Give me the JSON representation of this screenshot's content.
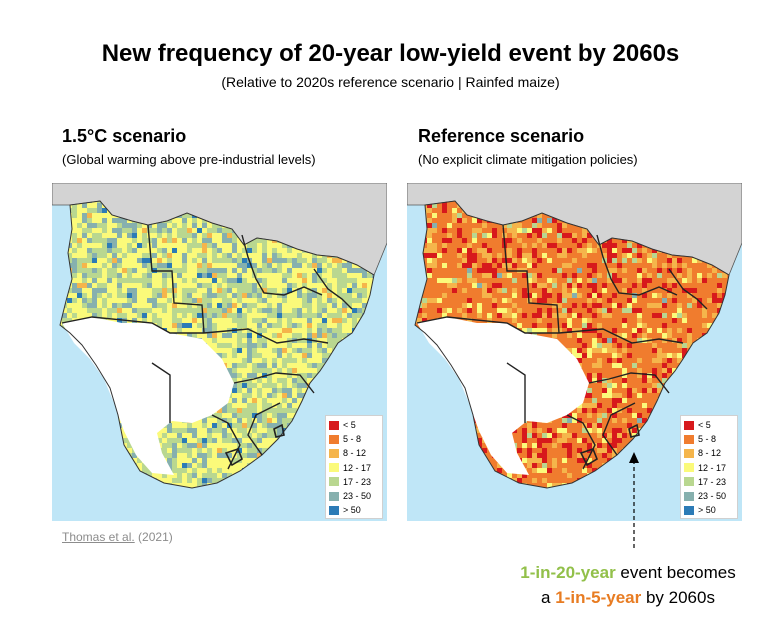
{
  "title": "New frequency of 20-year low-yield event by 2060s",
  "subtitle": "(Relative to 2020s reference scenario | Rainfed maize)",
  "panels": [
    {
      "title": "1.5°C  scenario",
      "subtitle": "(Global warming above pre-industrial levels)",
      "palette": "mild"
    },
    {
      "title": "Reference scenario",
      "subtitle": "(No explicit climate mitigation policies)",
      "palette": "hot"
    }
  ],
  "legend": [
    {
      "label": "< 5",
      "color": "#d7191c"
    },
    {
      "label": "5 - 8",
      "color": "#f07c2e"
    },
    {
      "label": "8 - 12",
      "color": "#f5b54b"
    },
    {
      "label": "12 - 17",
      "color": "#fbfa7a"
    },
    {
      "label": "17 - 23",
      "color": "#b9d790"
    },
    {
      "label": "23 - 50",
      "color": "#86b0ae"
    },
    {
      "label": "> 50",
      "color": "#2c7bb6"
    }
  ],
  "citation": {
    "author": "Thomas et al.",
    "year": "(2021)"
  },
  "callout": {
    "part1": "1-in-20-year",
    "part2": " event becomes",
    "part3": "a ",
    "part4": "1-in-5-year",
    "part5": " by 2060s"
  },
  "colors": {
    "sea": "#bfe6f7",
    "land_other": "#d3d3d3",
    "no_data": "#ffffff",
    "green_accent": "#92c04a",
    "orange_accent": "#e87c22"
  }
}
